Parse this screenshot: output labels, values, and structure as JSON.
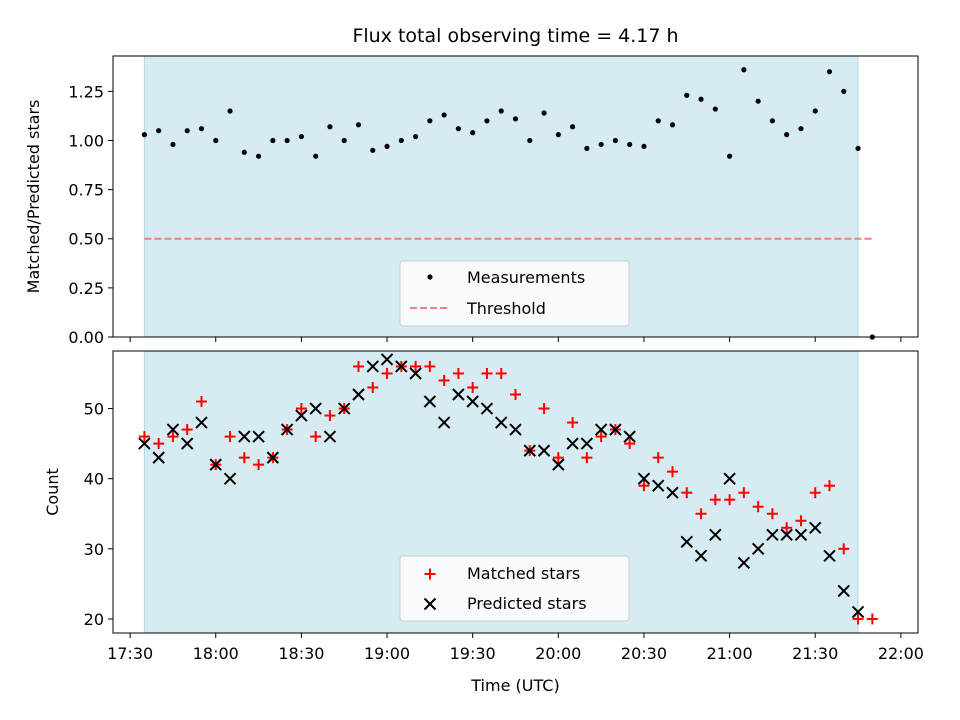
{
  "chart_data": [
    {
      "type": "scatter",
      "title": "Flux total observing time = 4.17 h",
      "xlabel": "",
      "ylabel": "Matched/Predicted stars",
      "ylim": [
        0,
        1.43
      ],
      "yticks": [
        "0.00",
        "0.25",
        "0.50",
        "0.75",
        "1.00",
        "1.25"
      ],
      "threshold": 0.5,
      "legend_position": "lower-center",
      "legend": {
        "measurements": "Measurements",
        "threshold": "Threshold"
      },
      "colors": {
        "points": "#000000",
        "threshold": "#f08080",
        "band": "#add8e6"
      },
      "x": [
        0,
        5,
        10,
        15,
        20,
        25,
        30,
        35,
        40,
        45,
        50,
        55,
        60,
        65,
        70,
        75,
        80,
        85,
        90,
        95,
        100,
        105,
        110,
        115,
        120,
        125,
        130,
        135,
        140,
        145,
        150,
        155,
        160,
        165,
        170,
        175,
        180,
        185,
        190,
        195,
        200,
        205,
        210,
        215,
        220,
        225,
        230,
        235,
        240,
        245,
        250,
        255
      ],
      "values": [
        1.03,
        1.05,
        0.98,
        1.05,
        1.06,
        1.0,
        1.15,
        0.94,
        0.92,
        1.0,
        1.0,
        1.02,
        0.92,
        1.07,
        1.0,
        1.08,
        0.95,
        0.97,
        1.0,
        1.02,
        1.1,
        1.13,
        1.06,
        1.04,
        1.1,
        1.15,
        1.11,
        1.0,
        1.14,
        1.03,
        1.07,
        0.96,
        0.98,
        1.0,
        0.98,
        0.97,
        1.1,
        1.08,
        1.23,
        1.21,
        1.16,
        0.92,
        1.36,
        1.2,
        1.1,
        1.03,
        1.06,
        1.15,
        1.35,
        1.25,
        0.96,
        0.0
      ]
    },
    {
      "type": "scatter",
      "title": "",
      "xlabel": "Time (UTC)",
      "ylabel": "Count",
      "ylim": [
        18,
        58.2
      ],
      "yticks": [
        "20",
        "30",
        "40",
        "50"
      ],
      "xlim_minutes": [
        -11,
        271
      ],
      "observing_window_minutes": [
        0,
        250
      ],
      "xtick_minutes": [
        -5,
        25,
        55,
        85,
        115,
        145,
        175,
        205,
        235,
        265
      ],
      "xticks": [
        "17:30",
        "18:00",
        "18:30",
        "19:00",
        "19:30",
        "20:00",
        "20:30",
        "21:00",
        "21:30",
        "22:00"
      ],
      "legend_position": "lower-center",
      "x": [
        0,
        5,
        10,
        15,
        20,
        25,
        30,
        35,
        40,
        45,
        50,
        55,
        60,
        65,
        70,
        75,
        80,
        85,
        90,
        95,
        100,
        105,
        110,
        115,
        120,
        125,
        130,
        135,
        140,
        145,
        150,
        155,
        160,
        165,
        170,
        175,
        180,
        185,
        190,
        195,
        200,
        205,
        210,
        215,
        220,
        225,
        230,
        235,
        240,
        245,
        250,
        255
      ],
      "series": [
        {
          "name": "Matched stars",
          "marker": "plus",
          "color": "#ff0000",
          "values": [
            46,
            45,
            46,
            47,
            51,
            42,
            46,
            43,
            42,
            43,
            47,
            50,
            46,
            49,
            50,
            56,
            53,
            55,
            56,
            56,
            56,
            54,
            55,
            53,
            55,
            55,
            52,
            44,
            50,
            43,
            48,
            43,
            46,
            47,
            45,
            39,
            43,
            41,
            38,
            35,
            37,
            37,
            38,
            36,
            35,
            33,
            34,
            38,
            39,
            30,
            20,
            20
          ]
        },
        {
          "name": "Predicted stars",
          "marker": "x",
          "color": "#000000",
          "values": [
            45,
            43,
            47,
            45,
            48,
            42,
            40,
            46,
            46,
            43,
            47,
            49,
            50,
            46,
            50,
            52,
            56,
            57,
            56,
            55,
            51,
            48,
            52,
            51,
            50,
            48,
            47,
            44,
            44,
            42,
            45,
            45,
            47,
            47,
            46,
            40,
            39,
            38,
            31,
            29,
            32,
            40,
            28,
            30,
            32,
            32,
            32,
            33,
            29,
            24,
            21,
            null
          ]
        }
      ]
    }
  ]
}
